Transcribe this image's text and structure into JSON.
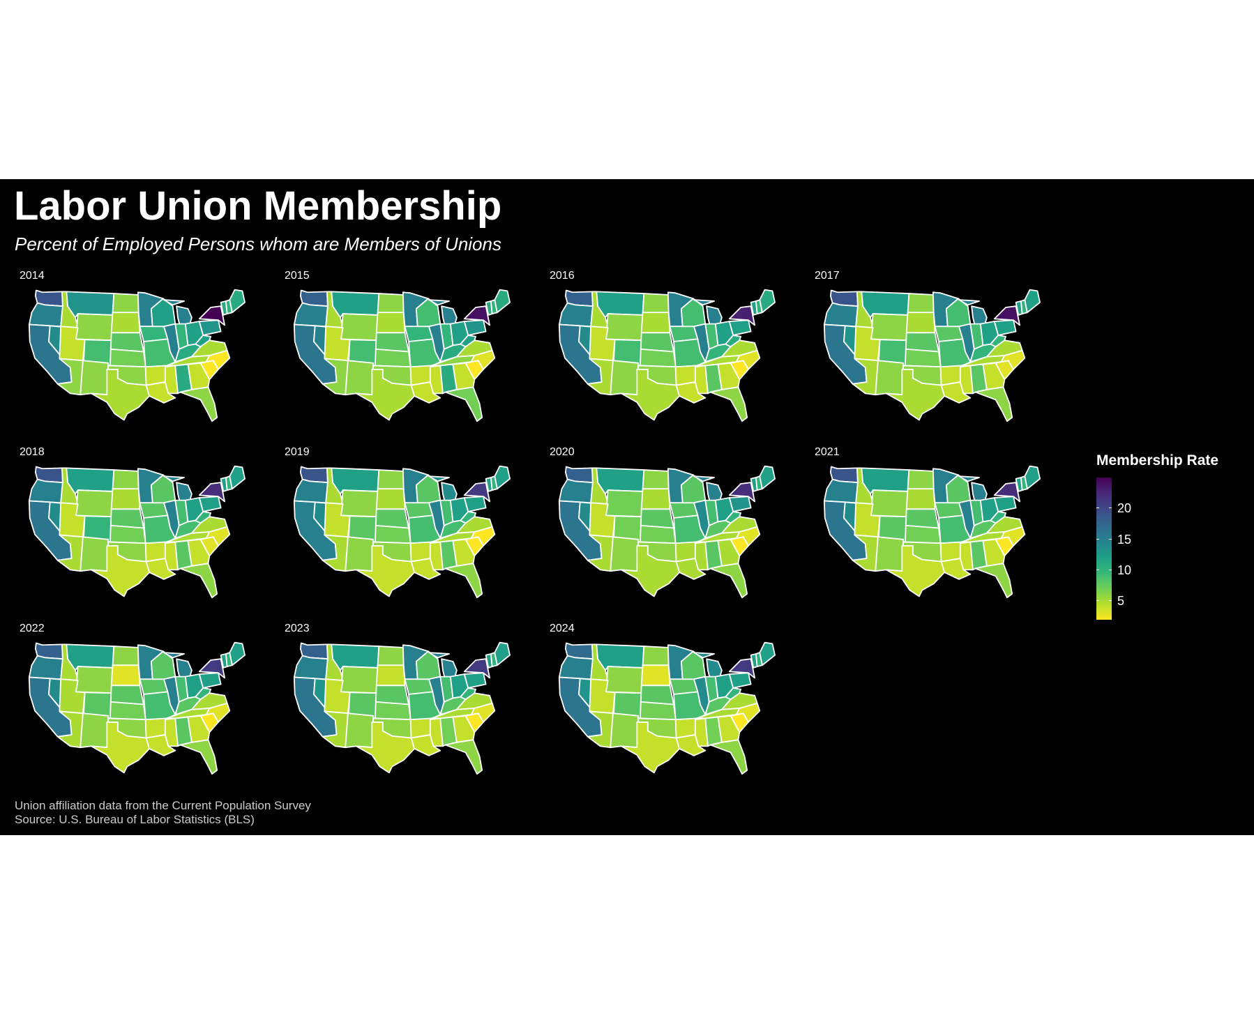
{
  "title": "Labor Union Membership",
  "subtitle": "Percent of Employed Persons whom are Members of Unions",
  "caption": {
    "line1": "Union affiliation data from the Current Population Survey",
    "line2": "Source: U.S. Bureau of Labor Statistics (BLS)"
  },
  "legend": {
    "title": "Membership Rate",
    "ticks": [
      20,
      15,
      10,
      5
    ],
    "range": [
      2,
      25
    ]
  },
  "colors": {
    "background": "#000000",
    "border": "#ffffff",
    "scale": [
      "#fde725",
      "#b5de2b",
      "#6ece58",
      "#35b779",
      "#1f9e89",
      "#26828e",
      "#31688e",
      "#3e4989",
      "#482878",
      "#440154"
    ]
  },
  "chart_data": {
    "type": "choropleth",
    "geography": "US states",
    "measure": "union membership rate (%)",
    "facets": [
      {
        "year": "2014",
        "rates": {
          "WA": 19,
          "OR": 15,
          "CA": 16,
          "NV": 14,
          "ID": 5,
          "MT": 13,
          "WY": 6,
          "UT": 4,
          "CO": 9,
          "AZ": 6,
          "NM": 6,
          "ND": 6,
          "SD": 5,
          "NE": 8,
          "KS": 7,
          "OK": 6,
          "TX": 5,
          "MN": 15,
          "IA": 10,
          "MO": 9,
          "AR": 4,
          "LA": 4,
          "WI": 12,
          "IL": 15,
          "MS": 4,
          "MI": 15,
          "IN": 10,
          "OH": 12,
          "KY": 11,
          "TN": 5,
          "AL": 11,
          "GA": 4,
          "FL": 6,
          "SC": 2,
          "NC": 2,
          "VA": 5,
          "WV": 12,
          "PA": 13,
          "NY": 25,
          "VT": 11,
          "NH": 10,
          "ME": 11
        }
      },
      {
        "year": "2015",
        "rates": {
          "WA": 18,
          "OR": 15,
          "CA": 16,
          "NV": 15,
          "ID": 5,
          "MT": 12,
          "WY": 6,
          "UT": 4,
          "CO": 9,
          "AZ": 6,
          "NM": 6,
          "ND": 6,
          "SD": 5,
          "NE": 8,
          "KS": 7,
          "OK": 6,
          "TX": 5,
          "MN": 15,
          "IA": 10,
          "MO": 9,
          "AR": 4,
          "LA": 4,
          "WI": 9,
          "IL": 15,
          "MS": 4,
          "MI": 15,
          "IN": 10,
          "OH": 12,
          "KY": 11,
          "TN": 6,
          "AL": 11,
          "GA": 4,
          "FL": 7,
          "SC": 2,
          "NC": 3,
          "VA": 5,
          "WV": 12,
          "PA": 13,
          "NY": 24,
          "VT": 11,
          "NH": 10,
          "ME": 11
        }
      },
      {
        "year": "2016",
        "rates": {
          "WA": 18,
          "OR": 15,
          "CA": 16,
          "NV": 14,
          "ID": 5,
          "MT": 12,
          "WY": 6,
          "UT": 4,
          "CO": 9,
          "AZ": 5,
          "NM": 6,
          "ND": 6,
          "SD": 5,
          "NE": 8,
          "KS": 7,
          "OK": 6,
          "TX": 5,
          "MN": 15,
          "IA": 9,
          "MO": 9,
          "AR": 4,
          "LA": 4,
          "WI": 9,
          "IL": 15,
          "MS": 4,
          "MI": 15,
          "IN": 9,
          "OH": 12,
          "KY": 10,
          "TN": 5,
          "AL": 8,
          "GA": 4,
          "FL": 6,
          "SC": 2,
          "NC": 3,
          "VA": 5,
          "WV": 11,
          "PA": 12,
          "NY": 23,
          "VT": 12,
          "NH": 10,
          "ME": 11
        }
      },
      {
        "year": "2017",
        "rates": {
          "WA": 19,
          "OR": 15,
          "CA": 16,
          "NV": 13,
          "ID": 5,
          "MT": 12,
          "WY": 6,
          "UT": 4,
          "CO": 9,
          "AZ": 5,
          "NM": 6,
          "ND": 6,
          "SD": 5,
          "NE": 8,
          "KS": 7,
          "OK": 6,
          "TX": 5,
          "MN": 15,
          "IA": 8,
          "MO": 9,
          "AR": 4,
          "LA": 4,
          "WI": 9,
          "IL": 15,
          "MS": 4,
          "MI": 15,
          "IN": 9,
          "OH": 12,
          "KY": 10,
          "TN": 5,
          "AL": 8,
          "GA": 4,
          "FL": 6,
          "SC": 3,
          "NC": 3,
          "VA": 5,
          "WV": 10,
          "PA": 12,
          "NY": 24,
          "VT": 12,
          "NH": 10,
          "ME": 12
        }
      },
      {
        "year": "2018",
        "rates": {
          "WA": 19,
          "OR": 15,
          "CA": 16,
          "NV": 14,
          "ID": 5,
          "MT": 12,
          "WY": 6,
          "UT": 4,
          "CO": 10,
          "AZ": 5,
          "NM": 6,
          "ND": 6,
          "SD": 5,
          "NE": 8,
          "KS": 7,
          "OK": 6,
          "TX": 4,
          "MN": 15,
          "IA": 8,
          "MO": 9,
          "AR": 4,
          "LA": 4,
          "WI": 8,
          "IL": 15,
          "MS": 4,
          "MI": 15,
          "IN": 9,
          "OH": 12,
          "KY": 9,
          "TN": 5,
          "AL": 8,
          "GA": 4,
          "FL": 6,
          "SC": 3,
          "NC": 3,
          "VA": 5,
          "WV": 10,
          "PA": 12,
          "NY": 22,
          "VT": 12,
          "NH": 10,
          "ME": 12
        }
      },
      {
        "year": "2019",
        "rates": {
          "WA": 19,
          "OR": 15,
          "CA": 15,
          "NV": 14,
          "ID": 5,
          "MT": 12,
          "WY": 6,
          "UT": 4,
          "CO": 8,
          "AZ": 5,
          "NM": 6,
          "ND": 6,
          "SD": 5,
          "NE": 8,
          "KS": 7,
          "OK": 6,
          "TX": 4,
          "MN": 15,
          "IA": 8,
          "MO": 9,
          "AR": 4,
          "LA": 4,
          "WI": 8,
          "IL": 15,
          "MS": 4,
          "MI": 14,
          "IN": 9,
          "OH": 12,
          "KY": 9,
          "TN": 5,
          "AL": 8,
          "GA": 4,
          "FL": 6,
          "SC": 2,
          "NC": 2,
          "VA": 5,
          "WV": 10,
          "PA": 12,
          "NY": 21,
          "VT": 12,
          "NH": 10,
          "ME": 12
        }
      },
      {
        "year": "2020",
        "rates": {
          "WA": 18,
          "OR": 15,
          "CA": 16,
          "NV": 14,
          "ID": 5,
          "MT": 12,
          "WY": 7,
          "UT": 4,
          "CO": 7,
          "AZ": 5,
          "NM": 6,
          "ND": 6,
          "SD": 5,
          "NE": 8,
          "KS": 7,
          "OK": 6,
          "TX": 5,
          "MN": 15,
          "IA": 8,
          "MO": 9,
          "AR": 5,
          "LA": 5,
          "WI": 8,
          "IL": 14,
          "MS": 5,
          "MI": 15,
          "IN": 9,
          "OH": 12,
          "KY": 8,
          "TN": 5,
          "AL": 8,
          "GA": 5,
          "FL": 6,
          "SC": 2,
          "NC": 3,
          "VA": 5,
          "WV": 10,
          "PA": 13,
          "NY": 22,
          "VT": 12,
          "NH": 10,
          "ME": 12
        }
      },
      {
        "year": "2021",
        "rates": {
          "WA": 19,
          "OR": 15,
          "CA": 16,
          "NV": 14,
          "ID": 5,
          "MT": 12,
          "WY": 6,
          "UT": 4,
          "CO": 8,
          "AZ": 5,
          "NM": 6,
          "ND": 6,
          "SD": 5,
          "NE": 8,
          "KS": 7,
          "OK": 6,
          "TX": 4,
          "MN": 15,
          "IA": 8,
          "MO": 9,
          "AR": 4,
          "LA": 4,
          "WI": 8,
          "IL": 15,
          "MS": 4,
          "MI": 15,
          "IN": 9,
          "OH": 12,
          "KY": 8,
          "TN": 5,
          "AL": 8,
          "GA": 4,
          "FL": 6,
          "SC": 2,
          "NC": 3,
          "VA": 5,
          "WV": 10,
          "PA": 12,
          "NY": 22,
          "VT": 12,
          "NH": 10,
          "ME": 12
        }
      },
      {
        "year": "2022",
        "rates": {
          "WA": 18,
          "OR": 15,
          "CA": 16,
          "NV": 14,
          "ID": 5,
          "MT": 12,
          "WY": 6,
          "UT": 5,
          "CO": 8,
          "AZ": 5,
          "NM": 6,
          "ND": 6,
          "SD": 3,
          "NE": 8,
          "KS": 7,
          "OK": 6,
          "TX": 4,
          "MN": 15,
          "IA": 8,
          "MO": 9,
          "AR": 4,
          "LA": 4,
          "WI": 8,
          "IL": 15,
          "MS": 4,
          "MI": 15,
          "IN": 9,
          "OH": 12,
          "KY": 8,
          "TN": 5,
          "AL": 8,
          "GA": 4,
          "FL": 6,
          "SC": 2,
          "NC": 3,
          "VA": 5,
          "WV": 10,
          "PA": 12,
          "NY": 21,
          "VT": 12,
          "NH": 10,
          "ME": 12
        }
      },
      {
        "year": "2023",
        "rates": {
          "WA": 18,
          "OR": 15,
          "CA": 16,
          "NV": 13,
          "ID": 5,
          "MT": 12,
          "WY": 6,
          "UT": 4,
          "CO": 8,
          "AZ": 5,
          "NM": 6,
          "ND": 6,
          "SD": 4,
          "NE": 8,
          "KS": 7,
          "OK": 6,
          "TX": 4,
          "MN": 15,
          "IA": 8,
          "MO": 9,
          "AR": 4,
          "LA": 4,
          "WI": 8,
          "IL": 15,
          "MS": 4,
          "MI": 15,
          "IN": 9,
          "OH": 12,
          "KY": 8,
          "TN": 5,
          "AL": 7,
          "GA": 4,
          "FL": 6,
          "SC": 2,
          "NC": 3,
          "VA": 5,
          "WV": 10,
          "PA": 12,
          "NY": 21,
          "VT": 12,
          "NH": 10,
          "ME": 12
        }
      },
      {
        "year": "2024",
        "rates": {
          "WA": 17,
          "OR": 15,
          "CA": 16,
          "NV": 13,
          "ID": 5,
          "MT": 12,
          "WY": 6,
          "UT": 4,
          "CO": 8,
          "AZ": 5,
          "NM": 6,
          "ND": 6,
          "SD": 3,
          "NE": 8,
          "KS": 7,
          "OK": 6,
          "TX": 4,
          "MN": 15,
          "IA": 8,
          "MO": 9,
          "AR": 4,
          "LA": 4,
          "WI": 8,
          "IL": 14,
          "MS": 4,
          "MI": 14,
          "IN": 9,
          "OH": 12,
          "KY": 8,
          "TN": 5,
          "AL": 7,
          "GA": 4,
          "FL": 6,
          "SC": 2,
          "NC": 3,
          "VA": 5,
          "WV": 10,
          "PA": 12,
          "NY": 21,
          "VT": 12,
          "NH": 10,
          "ME": 12
        }
      }
    ]
  }
}
